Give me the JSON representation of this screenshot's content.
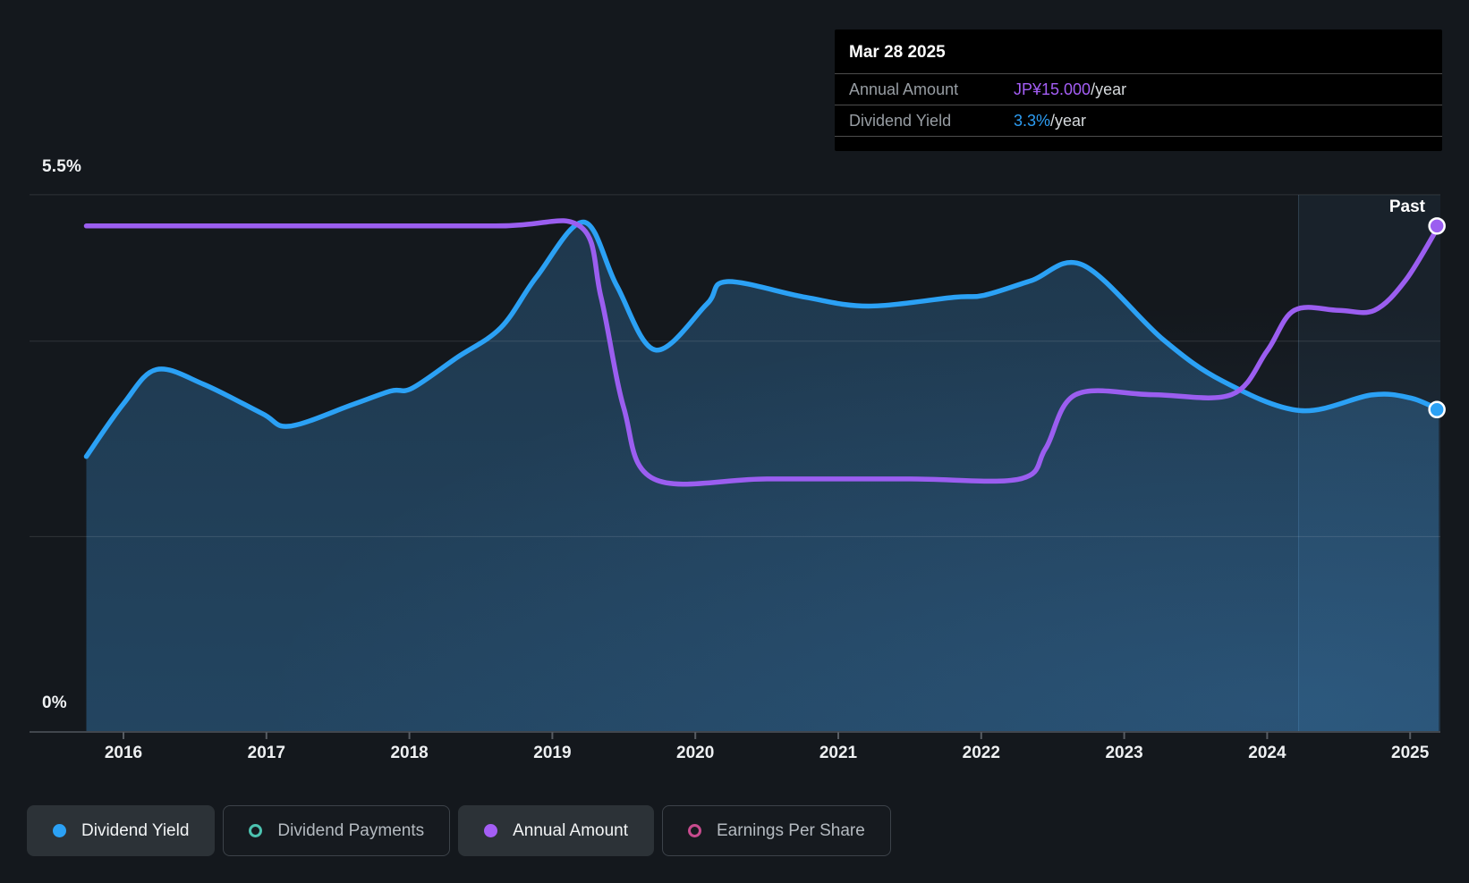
{
  "page": {
    "background": "#14181d"
  },
  "tooltip": {
    "date": "Mar 28 2025",
    "rows": [
      {
        "label": "Annual Amount",
        "value": "JP¥15.000",
        "suffix": "/year",
        "value_color": "#a45ef5"
      },
      {
        "label": "Dividend Yield",
        "value": "3.3%",
        "suffix": "/year",
        "value_color": "#2d9df3"
      }
    ]
  },
  "axes": {
    "y_top_label": "5.5%",
    "y_bottom_label": "0%",
    "x_labels": [
      "2016",
      "2017",
      "2018",
      "2019",
      "2020",
      "2021",
      "2022",
      "2023",
      "2024",
      "2025"
    ],
    "past_label": "Past"
  },
  "legend": {
    "items": [
      {
        "label": "Dividend Yield",
        "marker": "filled",
        "color": "#2ba1f5",
        "active": true
      },
      {
        "label": "Dividend Payments",
        "marker": "outline",
        "color": "#4cc2b0",
        "active": false
      },
      {
        "label": "Annual Amount",
        "marker": "filled",
        "color": "#a45ef5",
        "active": true
      },
      {
        "label": "Earnings Per Share",
        "marker": "outline",
        "color": "#c74b8e",
        "active": false
      }
    ]
  },
  "chart_data": {
    "type": "line",
    "x_axis": {
      "tick_labels": [
        "2016",
        "2017",
        "2018",
        "2019",
        "2020",
        "2021",
        "2022",
        "2023",
        "2024",
        "2025"
      ],
      "range": [
        2015.74,
        2025.42
      ]
    },
    "y_axis_percent": {
      "top_label": "5.5%",
      "bottom_label": "0%",
      "min": 0,
      "max": 5.5,
      "gridlines_at": [
        5.5,
        4.0,
        2.0
      ]
    },
    "amount_axis": {
      "unit": "JP¥ per year",
      "min": 0,
      "max": 15,
      "max_equiv_percent": 5.18
    },
    "past_region_start": 2024.22,
    "annotations": [
      "Past"
    ],
    "legend_position": "bottom",
    "series": [
      {
        "name": "Dividend Yield",
        "unit": "percent",
        "color": "#2ba1f5",
        "style": "area-line",
        "points": [
          [
            2015.74,
            2.82
          ],
          [
            2016.0,
            3.36
          ],
          [
            2016.23,
            3.71
          ],
          [
            2016.56,
            3.56
          ],
          [
            2016.97,
            3.26
          ],
          [
            2017.16,
            3.13
          ],
          [
            2017.6,
            3.35
          ],
          [
            2017.87,
            3.49
          ],
          [
            2018.02,
            3.52
          ],
          [
            2018.33,
            3.83
          ],
          [
            2018.64,
            4.14
          ],
          [
            2018.89,
            4.66
          ],
          [
            2019.22,
            5.22
          ],
          [
            2019.45,
            4.57
          ],
          [
            2019.72,
            3.91
          ],
          [
            2020.08,
            4.38
          ],
          [
            2020.22,
            4.61
          ],
          [
            2020.77,
            4.45
          ],
          [
            2021.21,
            4.36
          ],
          [
            2021.81,
            4.45
          ],
          [
            2022.02,
            4.47
          ],
          [
            2022.35,
            4.62
          ],
          [
            2022.71,
            4.78
          ],
          [
            2023.27,
            4.02
          ],
          [
            2023.69,
            3.59
          ],
          [
            2024.23,
            3.29
          ],
          [
            2024.73,
            3.45
          ],
          [
            2025.0,
            3.42
          ],
          [
            2025.2,
            3.3
          ]
        ]
      },
      {
        "name": "Annual Amount",
        "unit": "JP¥ per year",
        "color": "#9b5ef0",
        "style": "line",
        "points": [
          [
            2015.74,
            15
          ],
          [
            2017.0,
            15
          ],
          [
            2018.6,
            15
          ],
          [
            2019.19,
            15
          ],
          [
            2019.34,
            12.9
          ],
          [
            2019.5,
            9.6
          ],
          [
            2019.71,
            7.5
          ],
          [
            2020.5,
            7.5
          ],
          [
            2021.5,
            7.5
          ],
          [
            2022.27,
            7.5
          ],
          [
            2022.45,
            8.4
          ],
          [
            2022.66,
            10
          ],
          [
            2023.2,
            10
          ],
          [
            2023.75,
            10
          ],
          [
            2024.0,
            11.3
          ],
          [
            2024.19,
            12.5
          ],
          [
            2024.5,
            12.5
          ],
          [
            2024.75,
            12.5
          ],
          [
            2024.97,
            13.4
          ],
          [
            2025.2,
            15
          ]
        ]
      },
      {
        "name": "Dividend Payments",
        "color": "#4cc2b0",
        "style": "hidden",
        "points": []
      },
      {
        "name": "Earnings Per Share",
        "color": "#c74b8e",
        "style": "hidden",
        "points": []
      }
    ],
    "end_markers": [
      {
        "series": "Annual Amount",
        "x": 2025.2,
        "value": 15,
        "display": "JP¥15.000/year"
      },
      {
        "series": "Dividend Yield",
        "x": 2025.2,
        "value": 3.3,
        "display": "3.3%/year"
      }
    ]
  }
}
